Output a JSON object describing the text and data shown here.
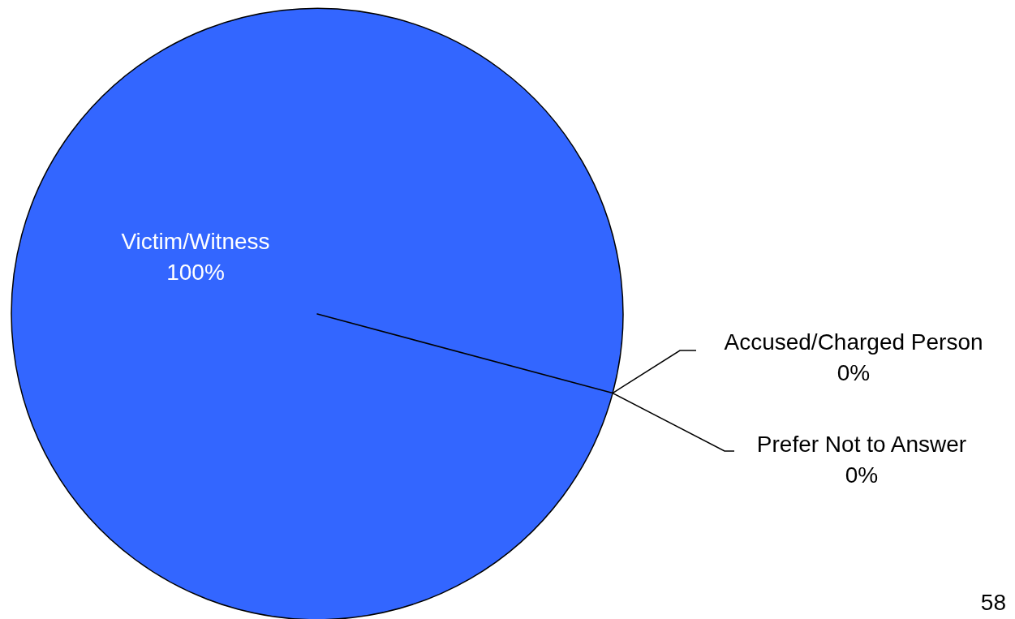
{
  "chart_data": {
    "type": "pie",
    "categories": [
      "Victim/Witness",
      "Accused/Charged Person",
      "Prefer Not to Answer"
    ],
    "values": [
      100,
      0,
      0
    ],
    "colors": [
      "#3366ff",
      null,
      null
    ],
    "value_labels": [
      "100%",
      "0%",
      "0%"
    ],
    "annotations": [
      "58"
    ]
  }
}
